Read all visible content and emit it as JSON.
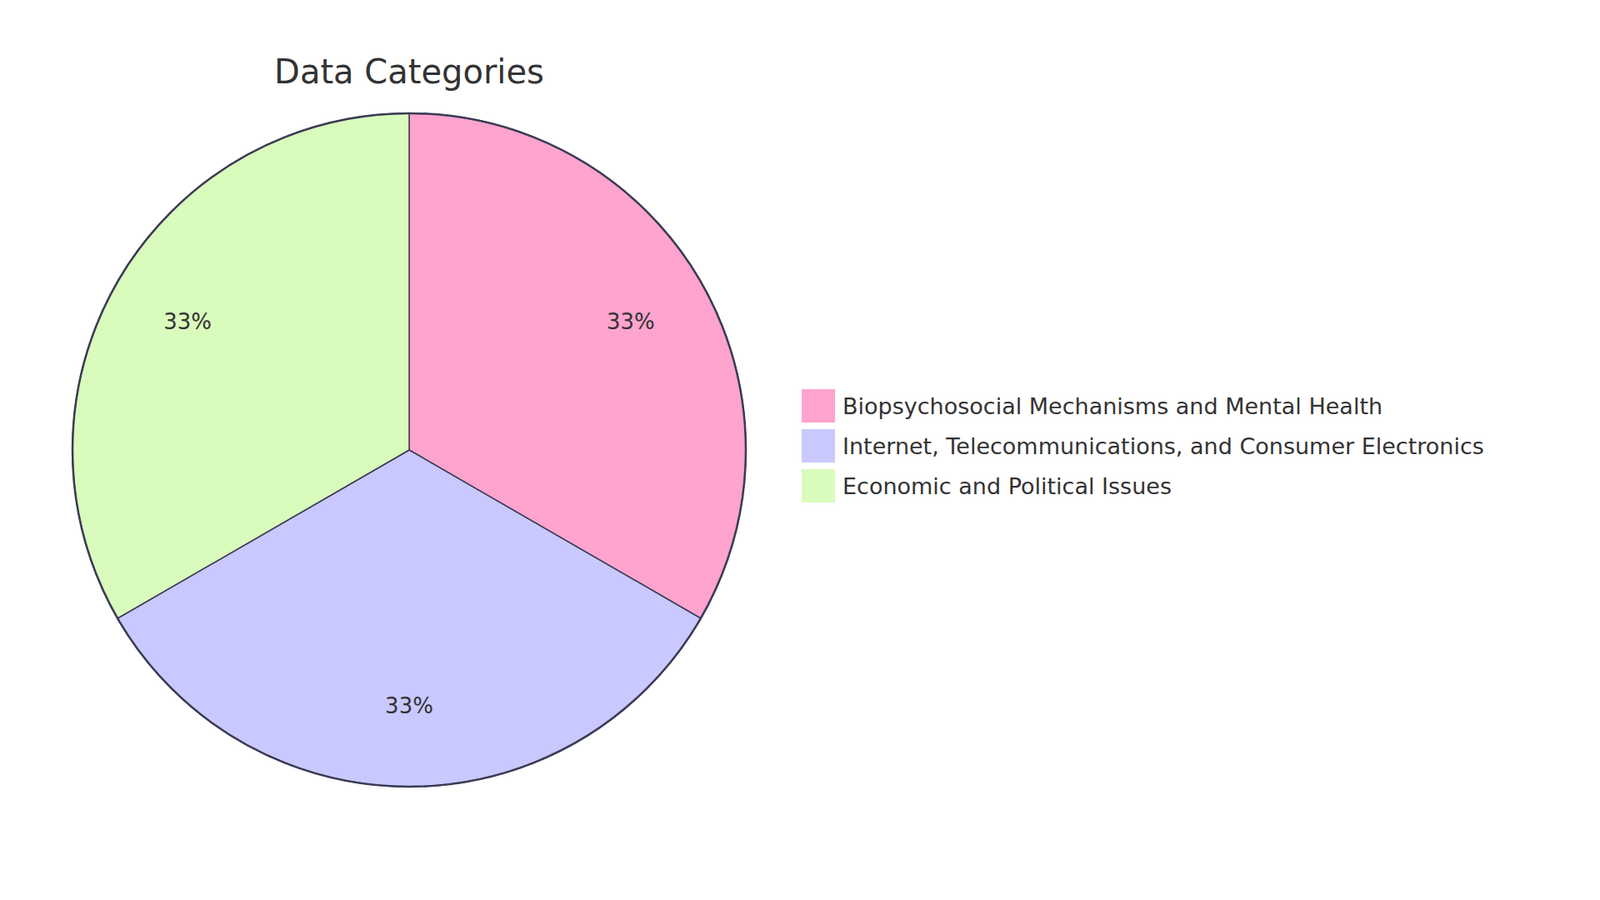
{
  "chart_data": {
    "type": "pie",
    "title": "Data Categories",
    "categories": [
      "Biopsychosocial Mechanisms and Mental Health",
      "Internet, Telecommunications, and Consumer Electronics",
      "Economic and Political Issues"
    ],
    "values": [
      33,
      33,
      33
    ],
    "value_labels": [
      "33%",
      "33%",
      "33%"
    ],
    "colors": [
      "#ffa3cf",
      "#c9c9ff",
      "#d9fbbc"
    ],
    "data_labels": true,
    "legend": "right"
  }
}
